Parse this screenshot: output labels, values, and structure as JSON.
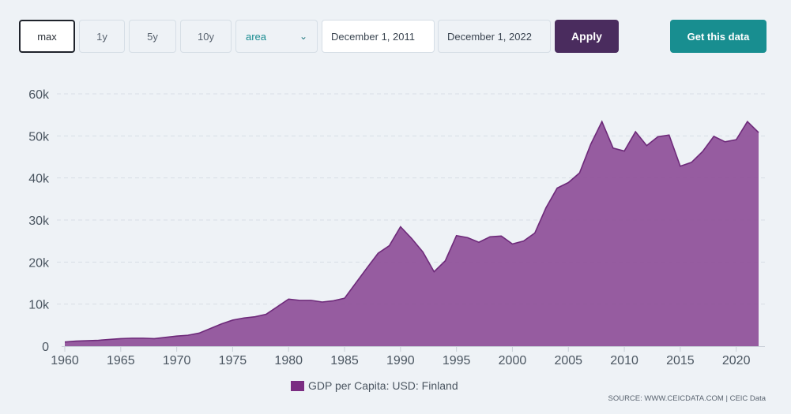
{
  "toolbar": {
    "range_buttons": [
      "max",
      "1y",
      "5y",
      "10y"
    ],
    "chart_type_selected": "area",
    "date_from": "December 1, 2011",
    "date_to": "December 1, 2022",
    "apply_label": "Apply",
    "get_data_label": "Get this data"
  },
  "colors": {
    "area_fill": "#8e4f98",
    "area_line": "#6e2a7a",
    "legend_swatch": "#7b2d82",
    "apply_bg": "#4a2c5e",
    "get_data_bg": "#188e90"
  },
  "source_text": "SOURCE: WWW.CEICDATA.COM | CEIC Data",
  "chart_data": {
    "type": "area",
    "title": "",
    "xlabel": "",
    "ylabel": "",
    "legend": "GDP per Capita: USD: Finland",
    "legend_position": "bottom",
    "grid": true,
    "xlim": [
      1960,
      2022
    ],
    "ylim": [
      0,
      60000
    ],
    "x_ticks": [
      1960,
      1965,
      1970,
      1975,
      1980,
      1985,
      1990,
      1995,
      2000,
      2005,
      2010,
      2015,
      2020
    ],
    "y_ticks": [
      0,
      10000,
      20000,
      30000,
      40000,
      50000,
      60000
    ],
    "y_tick_labels": [
      "0",
      "10k",
      "20k",
      "30k",
      "40k",
      "50k",
      "60k"
    ],
    "x": [
      1960,
      1961,
      1962,
      1963,
      1964,
      1965,
      1966,
      1967,
      1968,
      1969,
      1970,
      1971,
      1972,
      1973,
      1974,
      1975,
      1976,
      1977,
      1978,
      1979,
      1980,
      1981,
      1982,
      1983,
      1984,
      1985,
      1986,
      1987,
      1988,
      1989,
      1990,
      1991,
      1992,
      1993,
      1994,
      1995,
      1996,
      1997,
      1998,
      1999,
      2000,
      2001,
      2002,
      2003,
      2004,
      2005,
      2006,
      2007,
      2008,
      2009,
      2010,
      2011,
      2012,
      2013,
      2014,
      2015,
      2016,
      2017,
      2018,
      2019,
      2020,
      2021,
      2022
    ],
    "values": [
      1000,
      1200,
      1300,
      1400,
      1600,
      1800,
      1900,
      1900,
      1800,
      2100,
      2400,
      2600,
      3100,
      4200,
      5300,
      6200,
      6700,
      7000,
      7600,
      9400,
      11200,
      10900,
      10900,
      10500,
      10800,
      11400,
      15000,
      18600,
      22100,
      23900,
      28400,
      25600,
      22400,
      17700,
      20300,
      26300,
      25800,
      24700,
      26000,
      26200,
      24300,
      25000,
      26900,
      32900,
      37600,
      38900,
      41200,
      48000,
      53400,
      47100,
      46400,
      51000,
      47700,
      49800,
      50200,
      42800,
      43700,
      46300,
      49900,
      48600,
      49100,
      53400,
      50800
    ]
  }
}
